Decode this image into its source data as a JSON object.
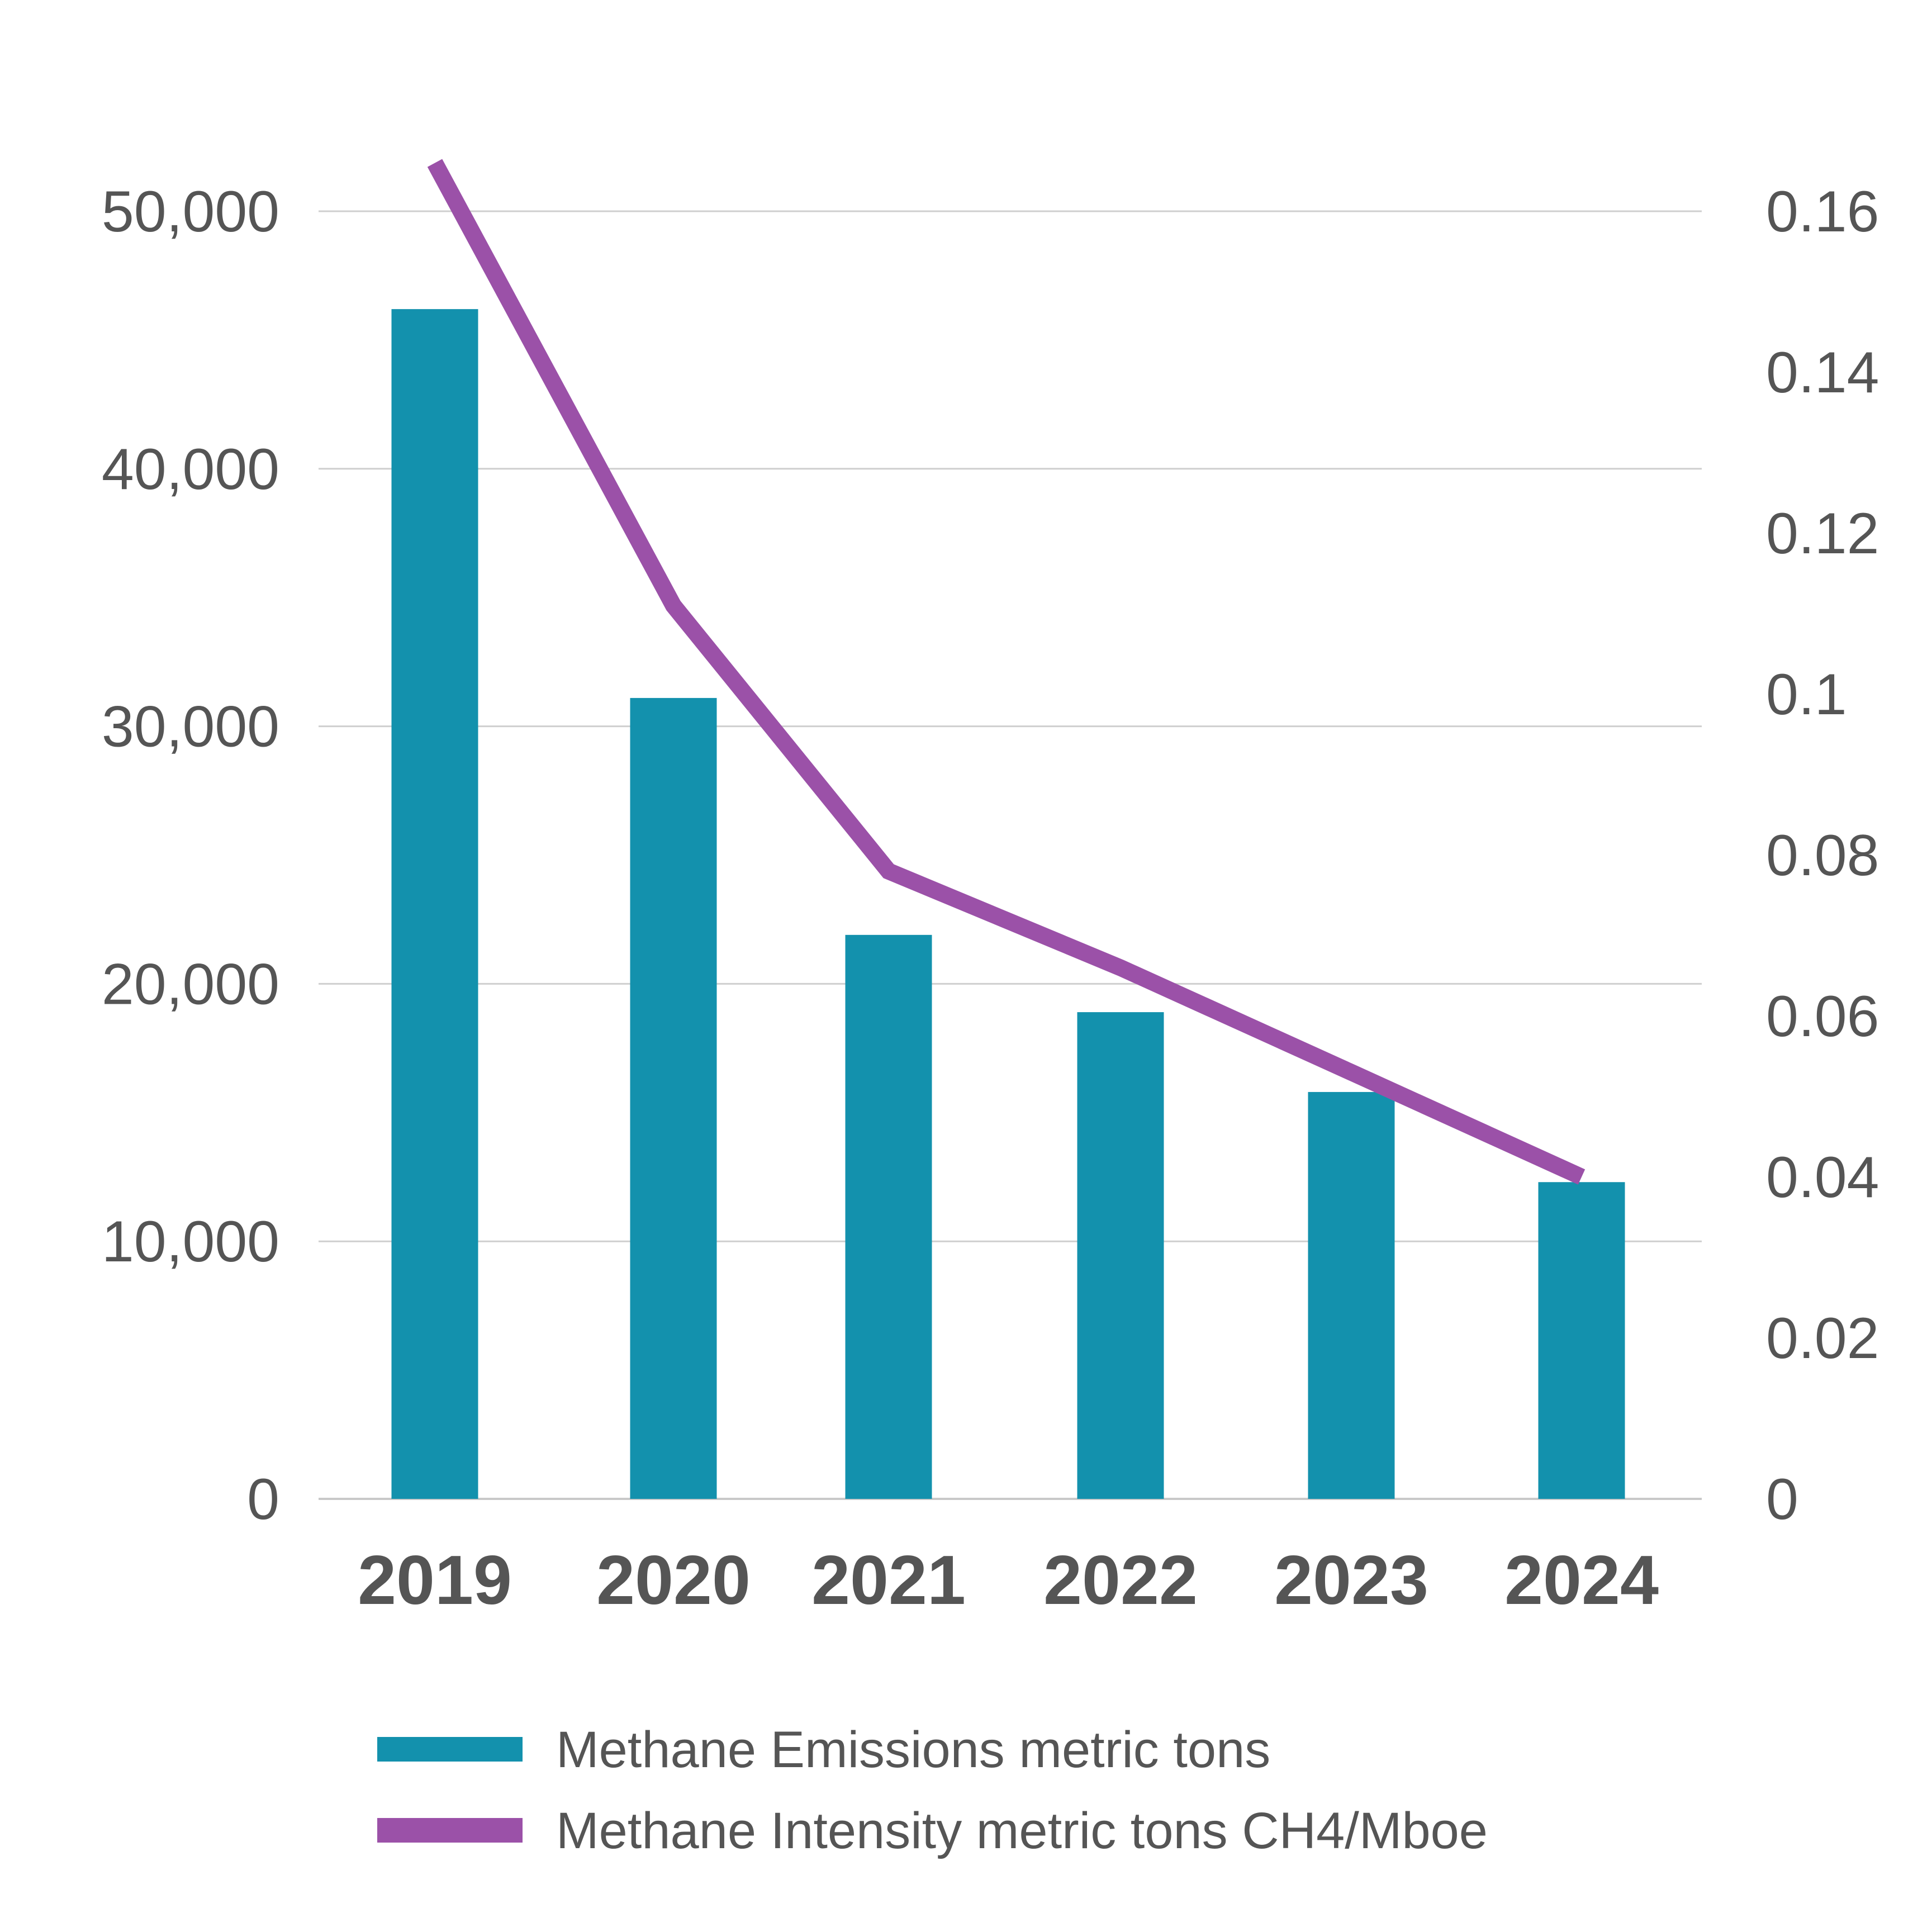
{
  "chart_data": {
    "type": "bar",
    "categories": [
      "2019",
      "2020",
      "2021",
      "2022",
      "2023",
      "2024"
    ],
    "series": [
      {
        "name": "Methane Emissions metric tons",
        "type": "bar",
        "axis": "left",
        "color": "#1391ad",
        "values": [
          46200,
          31100,
          21900,
          18900,
          15800,
          12300
        ]
      },
      {
        "name": "Methane Intensity metric tons CH4/Mboe",
        "type": "line",
        "axis": "right",
        "color": "#9b51a8",
        "values": [
          0.166,
          0.111,
          0.078,
          0.066,
          0.053,
          0.04
        ]
      }
    ],
    "y_left": {
      "ylim": [
        0,
        50000
      ],
      "ticks": [
        0,
        10000,
        20000,
        30000,
        40000,
        50000
      ],
      "tick_labels": [
        "0",
        "10,000",
        "20,000",
        "30,000",
        "40,000",
        "50,000"
      ]
    },
    "y_right": {
      "ylim": [
        0,
        0.16
      ],
      "ticks": [
        0,
        0.02,
        0.04,
        0.06,
        0.08,
        0.1,
        0.12,
        0.14,
        0.16
      ],
      "tick_labels": [
        "0",
        "0.02",
        "0.04",
        "0.06",
        "0.08",
        "0.1",
        "0.12",
        "0.14",
        "0.16"
      ]
    },
    "grid": true,
    "legend": "bottom",
    "title": "",
    "xlabel": "",
    "ylabel": ""
  }
}
